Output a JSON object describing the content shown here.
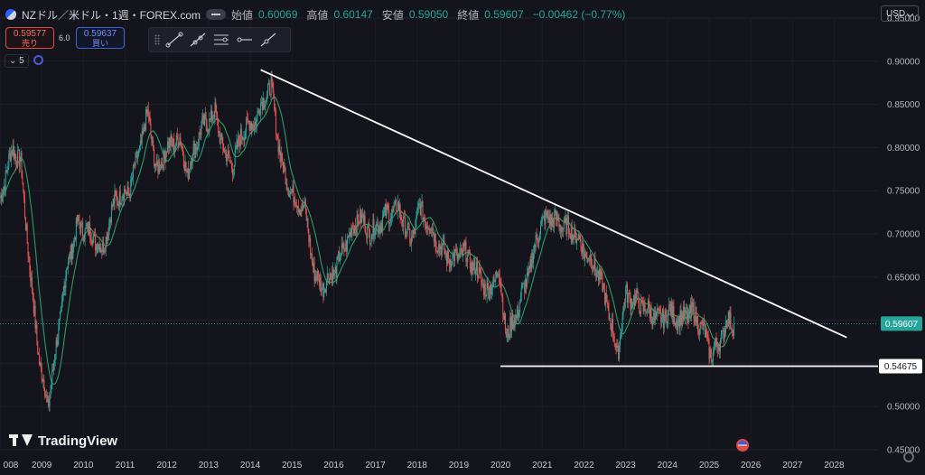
{
  "header": {
    "symbol": "NZドル／米ドル・1週・FOREX.com",
    "open_label": "始値",
    "open": "0.60069",
    "high_label": "高値",
    "high": "0.60147",
    "low_label": "安値",
    "low": "0.59050",
    "close_label": "終値",
    "close": "0.59607",
    "change": "−0.00462 (−0.77%)"
  },
  "trade": {
    "sell_price": "0.59577",
    "sell_label": "売り",
    "spread": "6.0",
    "buy_price": "0.59637",
    "buy_label": "買い"
  },
  "interval": "5",
  "currency": "USD",
  "brand": "TradingView",
  "colors": {
    "up": "#26a69a",
    "down": "#ef5350",
    "ma": "#2e9b62",
    "trendline": "#ffffff",
    "background": "#14151c"
  },
  "chart_data": {
    "type": "candlestick",
    "x_axis": {
      "labels": [
        "008",
        "2009",
        "2010",
        "2011",
        "2012",
        "2013",
        "2014",
        "2015",
        "2016",
        "2017",
        "2018",
        "2019",
        "2020",
        "2021",
        "2022",
        "2023",
        "2024",
        "2025",
        "2026",
        "2027",
        "2028"
      ],
      "range": [
        2008.0,
        2029.05
      ]
    },
    "y_axis": {
      "labels": [
        "0.95000",
        "0.90000",
        "0.85000",
        "0.80000",
        "0.75000",
        "0.70000",
        "0.65000",
        "0.60000",
        "0.55000",
        "0.50000",
        "0.45000"
      ],
      "range": [
        0.45,
        0.95
      ]
    },
    "price_labels": {
      "current": "0.59607",
      "support": "0.54675"
    },
    "price_path": [
      [
        2008.0,
        0.74
      ],
      [
        2008.3,
        0.8
      ],
      [
        2008.5,
        0.78
      ],
      [
        2008.75,
        0.64
      ],
      [
        2008.95,
        0.55
      ],
      [
        2009.15,
        0.5
      ],
      [
        2009.35,
        0.57
      ],
      [
        2009.6,
        0.66
      ],
      [
        2009.85,
        0.71
      ],
      [
        2010.2,
        0.7
      ],
      [
        2010.45,
        0.68
      ],
      [
        2010.75,
        0.74
      ],
      [
        2011.1,
        0.75
      ],
      [
        2011.35,
        0.8
      ],
      [
        2011.55,
        0.84
      ],
      [
        2011.75,
        0.77
      ],
      [
        2012.0,
        0.8
      ],
      [
        2012.3,
        0.81
      ],
      [
        2012.5,
        0.77
      ],
      [
        2012.8,
        0.82
      ],
      [
        2013.15,
        0.84
      ],
      [
        2013.4,
        0.79
      ],
      [
        2013.6,
        0.78
      ],
      [
        2013.8,
        0.82
      ],
      [
        2014.1,
        0.83
      ],
      [
        2014.35,
        0.86
      ],
      [
        2014.5,
        0.87
      ],
      [
        2014.75,
        0.78
      ],
      [
        2015.05,
        0.74
      ],
      [
        2015.3,
        0.73
      ],
      [
        2015.55,
        0.65
      ],
      [
        2015.75,
        0.64
      ],
      [
        2016.05,
        0.66
      ],
      [
        2016.3,
        0.69
      ],
      [
        2016.6,
        0.72
      ],
      [
        2016.9,
        0.7
      ],
      [
        2017.2,
        0.72
      ],
      [
        2017.55,
        0.73
      ],
      [
        2017.85,
        0.69
      ],
      [
        2018.05,
        0.73
      ],
      [
        2018.3,
        0.71
      ],
      [
        2018.6,
        0.68
      ],
      [
        2018.85,
        0.67
      ],
      [
        2019.1,
        0.68
      ],
      [
        2019.4,
        0.66
      ],
      [
        2019.7,
        0.63
      ],
      [
        2019.95,
        0.66
      ],
      [
        2020.15,
        0.58
      ],
      [
        2020.4,
        0.61
      ],
      [
        2020.7,
        0.66
      ],
      [
        2020.95,
        0.71
      ],
      [
        2021.15,
        0.72
      ],
      [
        2021.5,
        0.71
      ],
      [
        2021.8,
        0.7
      ],
      [
        2022.0,
        0.68
      ],
      [
        2022.3,
        0.66
      ],
      [
        2022.55,
        0.62
      ],
      [
        2022.8,
        0.56
      ],
      [
        2023.0,
        0.63
      ],
      [
        2023.3,
        0.62
      ],
      [
        2023.55,
        0.61
      ],
      [
        2023.8,
        0.6
      ],
      [
        2024.05,
        0.61
      ],
      [
        2024.3,
        0.6
      ],
      [
        2024.6,
        0.61
      ],
      [
        2024.85,
        0.59
      ],
      [
        2025.05,
        0.56
      ],
      [
        2025.2,
        0.57
      ],
      [
        2025.45,
        0.6
      ],
      [
        2025.6,
        0.596
      ]
    ],
    "trendlines": [
      {
        "name": "",
        "points": [
          [
            2014.25,
            0.89
          ],
          [
            2028.3,
            0.58
          ]
        ]
      },
      {
        "name": "",
        "points": [
          [
            2020.0,
            0.54675
          ],
          [
            2029.05,
            0.54675
          ]
        ]
      }
    ]
  }
}
